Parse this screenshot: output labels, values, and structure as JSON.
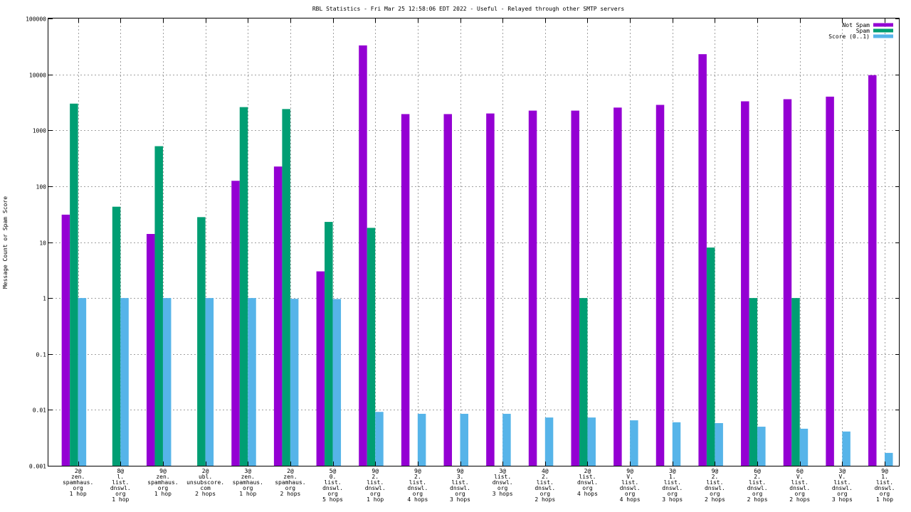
{
  "chart_data": {
    "type": "bar",
    "title": "RBL Statistics - Fri Mar 25 12:58:06 EDT 2022 - Useful - Relayed through other SMTP servers",
    "xlabel": "",
    "ylabel": "Message Count or Spam Score",
    "yscale": "log",
    "ylim": [
      0.001,
      100000
    ],
    "yticks": [
      "0.001",
      "0.01",
      "0.1",
      "1",
      "10",
      "100",
      "1000",
      "10000",
      "100000"
    ],
    "grid": true,
    "legend_position": "top-right",
    "categories": [
      [
        "2@",
        "zen.",
        "spamhaus.",
        "org",
        "1 hop"
      ],
      [
        "8@",
        "l.",
        "list.",
        "dnswl.",
        "org",
        "1 hop"
      ],
      [
        "9@",
        "zen.",
        "spamhaus.",
        "org",
        "1 hop"
      ],
      [
        "2@",
        "ubl.",
        "unsubscore.",
        "com",
        "2 hops"
      ],
      [
        "3@",
        "zen.",
        "spamhaus.",
        "org",
        "1 hop"
      ],
      [
        "2@",
        "zen.",
        "spamhaus.",
        "org",
        "2 hops"
      ],
      [
        "5@",
        "0.",
        "list.",
        "dnswl.",
        "org",
        "5 hops"
      ],
      [
        "9@",
        "2.",
        "list.",
        "dnswl.",
        "org",
        "1 hop"
      ],
      [
        "9@",
        "2.",
        "list.",
        "dnswl.",
        "org",
        "4 hops"
      ],
      [
        "9@",
        "3.",
        "list.",
        "dnswl.",
        "org",
        "3 hops"
      ],
      [
        "3@",
        "list.",
        "dnswl.",
        "org",
        "3 hops"
      ],
      [
        "4@",
        "2.",
        "list.",
        "dnswl.",
        "org",
        "2 hops"
      ],
      [
        "2@",
        "list.",
        "dnswl.",
        "org",
        "4 hops"
      ],
      [
        "9@",
        "V.",
        "list.",
        "dnswl.",
        "org",
        "4 hops"
      ],
      [
        "3@",
        "1.",
        "list.",
        "dnswl.",
        "org",
        "3 hops"
      ],
      [
        "9@",
        "2.",
        "list.",
        "dnswl.",
        "org",
        "2 hops"
      ],
      [
        "6@",
        "2.",
        "list.",
        "dnswl.",
        "org",
        "2 hops"
      ],
      [
        "6@",
        "V.",
        "list.",
        "dnswl.",
        "org",
        "2 hops"
      ],
      [
        "3@",
        "V.",
        "list.",
        "dnswl.",
        "org",
        "3 hops"
      ],
      [
        "9@",
        "1.",
        "list.",
        "dnswl.",
        "org",
        "1 hop"
      ]
    ],
    "series": [
      {
        "name": "Not Spam",
        "color": "#9400d3",
        "values": [
          31,
          null,
          14,
          null,
          125,
          225,
          3,
          33000,
          1950,
          1950,
          2000,
          2250,
          2250,
          2550,
          2850,
          23000,
          3300,
          3600,
          4000,
          9700
        ]
      },
      {
        "name": "Spam",
        "color": "#009e73",
        "values": [
          3000,
          43,
          520,
          28,
          2600,
          2400,
          23,
          18,
          null,
          null,
          null,
          null,
          1,
          null,
          null,
          8,
          1,
          1,
          null,
          null
        ]
      },
      {
        "name": "Score (0..1)",
        "color": "#56b4e9",
        "values": [
          1,
          1,
          1,
          1,
          1,
          0.97,
          0.96,
          0.0092,
          0.0085,
          0.0085,
          0.0085,
          0.0073,
          0.0073,
          0.0065,
          0.006,
          0.0058,
          0.005,
          0.0046,
          0.0041,
          0.0017
        ]
      }
    ]
  }
}
